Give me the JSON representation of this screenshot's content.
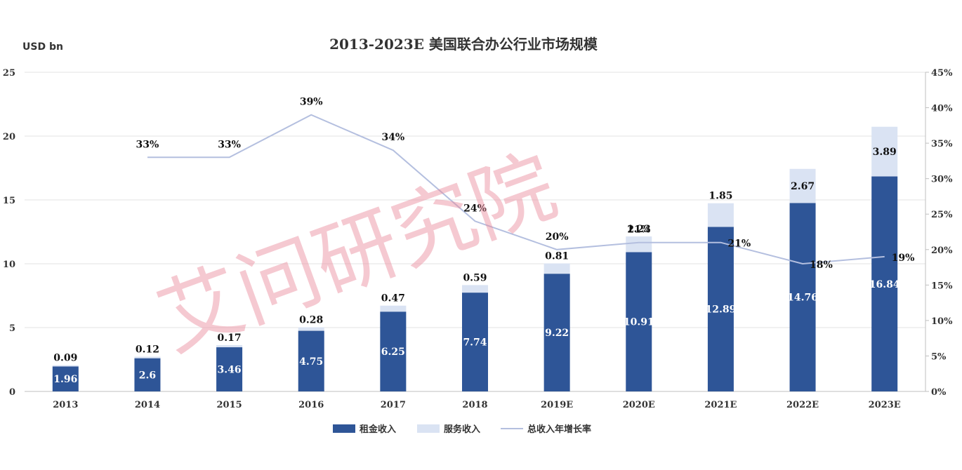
{
  "chart_data": {
    "type": "bar",
    "title": "2013-2023E 美国联合办公行业市场规模",
    "y_unit_label": "USD bn",
    "categories": [
      "2013",
      "2014",
      "2015",
      "2016",
      "2017",
      "2018",
      "2019E",
      "2020E",
      "2021E",
      "2022E",
      "2023E"
    ],
    "series": [
      {
        "name": "租金收入",
        "kind": "stacked-bar",
        "color": "#2e5597",
        "values": [
          1.96,
          2.6,
          3.46,
          4.75,
          6.25,
          7.74,
          9.22,
          10.91,
          12.89,
          14.76,
          16.84
        ],
        "labels": [
          "1.96",
          "2.6",
          "3.46",
          "4.75",
          "6.25",
          "7.74",
          "9.22",
          "10.91",
          "12.89",
          "14.76",
          "16.84"
        ]
      },
      {
        "name": "服务收入",
        "kind": "stacked-bar",
        "color": "#dae3f3",
        "values": [
          0.09,
          0.12,
          0.17,
          0.28,
          0.47,
          0.59,
          0.81,
          1.23,
          1.85,
          2.67,
          3.89
        ],
        "labels": [
          "0.09",
          "0.12",
          "0.17",
          "0.28",
          "0.47",
          "0.59",
          "0.81",
          "1.23",
          "1.85",
          "2.67",
          "3.89"
        ]
      },
      {
        "name": "总收入年增长率",
        "kind": "line",
        "axis": "right",
        "color": "#b4bfdf",
        "values": [
          null,
          33,
          33,
          39,
          34,
          24,
          20,
          21,
          21,
          18,
          19
        ],
        "labels": [
          "",
          "33%",
          "33%",
          "39%",
          "34%",
          "24%",
          "20%",
          "21%",
          "21%",
          "18%",
          "19%"
        ]
      }
    ],
    "y_left": {
      "min": 0,
      "max": 25,
      "ticks": [
        0,
        5,
        10,
        15,
        20,
        25
      ],
      "tick_labels": [
        "0",
        "5",
        "10",
        "15",
        "20",
        "25"
      ]
    },
    "y_right": {
      "min": 0,
      "max": 45,
      "ticks": [
        0,
        5,
        10,
        15,
        20,
        25,
        30,
        35,
        40,
        45
      ],
      "tick_labels": [
        "0%",
        "5%",
        "10%",
        "15%",
        "20%",
        "25%",
        "30%",
        "35%",
        "40%",
        "45%"
      ]
    },
    "grid": true,
    "legend_position": "bottom"
  },
  "watermark": {
    "text": "艾问研究院",
    "color": "#e8889a"
  }
}
